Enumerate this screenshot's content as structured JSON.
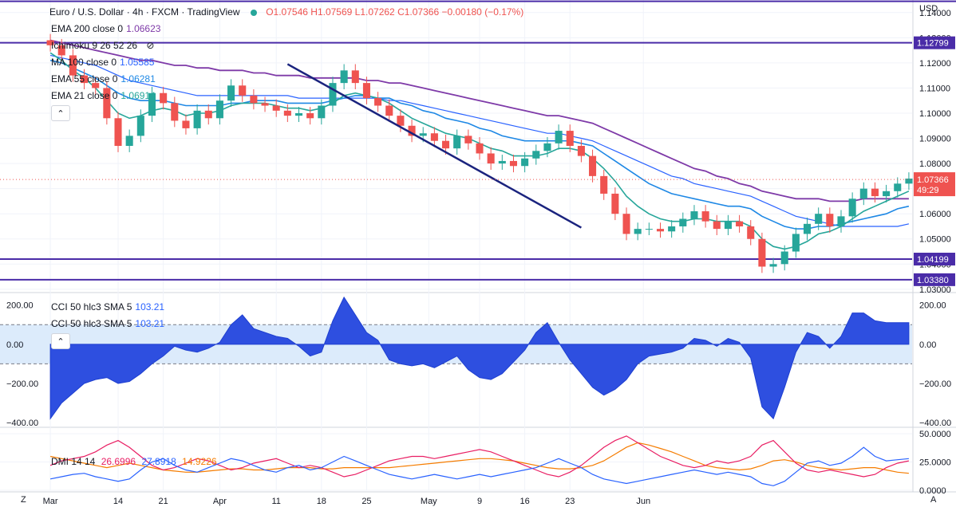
{
  "header": {
    "symbol": "Euro / U.S. Dollar · 4h · FXCM · TradingView",
    "open": "O1.07546",
    "high": "H1.07569",
    "low": "L1.07262",
    "close": "C1.07366",
    "change": "−0.00180 (−0.17%)",
    "currency": "USD"
  },
  "indicators_main": [
    {
      "label": "EMA 200 close 0",
      "value": "1.06623",
      "color": "#7e3aa8"
    },
    {
      "label": "Ichimoku 9 26 52 26",
      "value": "",
      "color": "#131722"
    },
    {
      "label": "MA 100 close 0",
      "value": "1.05585",
      "color": "#2962ff"
    },
    {
      "label": "EMA 55 close 0",
      "value": "1.06281",
      "color": "#1e88e5"
    },
    {
      "label": "EMA 21 close 0",
      "value": "1.06914",
      "color": "#26a69a"
    }
  ],
  "cci_legends": [
    {
      "label": "CCI 50 hlc3 SMA 5",
      "value": "103.21"
    },
    {
      "label": "CCI 50 hlc3 SMA 5",
      "value": "103.21"
    }
  ],
  "dmi_legend": {
    "label": "DMI 14 14",
    "v1": "26.6996",
    "v2": "27.8918",
    "v3": "14.9226",
    "c1": "#e91e63",
    "c2": "#2962ff",
    "c3": "#f57c00"
  },
  "bottom_bar": {
    "left": "Z",
    "right": "A"
  },
  "chart_data": {
    "type": "candlestick",
    "price_axis": {
      "ticks": [
        "1.14000",
        "1.13000",
        "1.12000",
        "1.11000",
        "1.10000",
        "1.09000",
        "1.08000",
        "1.07000",
        "1.06000",
        "1.05000",
        "1.04000",
        "1.03000"
      ],
      "range": [
        1.029,
        1.145
      ]
    },
    "levels": [
      {
        "price": 1.12799,
        "label": "1.12799",
        "color": "#4a2ca8"
      },
      {
        "price": 1.04199,
        "label": "1.04199",
        "color": "#4a2ca8"
      },
      {
        "price": 1.0338,
        "label": "1.03380",
        "color": "#4a2ca8"
      }
    ],
    "top_line_price": 1.1445,
    "last_price": {
      "price": 1.07366,
      "label": "1.07366",
      "countdown": "49:29",
      "color": "#ef5350"
    },
    "x_axis_labels": [
      "Mar",
      "14",
      "21",
      "Apr",
      "11",
      "18",
      "25",
      "May",
      "9",
      "16",
      "23",
      "Jun"
    ],
    "x_axis_positions": [
      0.5,
      6.5,
      10.5,
      15.5,
      20.5,
      24.5,
      28.5,
      34,
      38.5,
      42.5,
      46.5,
      53
    ],
    "trendline": {
      "from": [
        21.5,
        1.1195
      ],
      "to": [
        47.5,
        1.0545
      ],
      "color": "#1a237e"
    },
    "closes": [
      1.127,
      1.123,
      1.115,
      1.112,
      1.11,
      1.098,
      1.087,
      1.091,
      1.099,
      1.108,
      1.104,
      1.097,
      1.094,
      1.101,
      1.098,
      1.105,
      1.111,
      1.107,
      1.104,
      1.103,
      1.101,
      1.099,
      1.1,
      1.098,
      1.103,
      1.112,
      1.117,
      1.112,
      1.106,
      1.103,
      1.099,
      1.095,
      1.091,
      1.092,
      1.089,
      1.086,
      1.091,
      1.088,
      1.084,
      1.08,
      1.081,
      1.079,
      1.082,
      1.085,
      1.088,
      1.093,
      1.087,
      1.083,
      1.075,
      1.068,
      1.06,
      1.052,
      1.054,
      1.054,
      1.053,
      1.055,
      1.058,
      1.061,
      1.057,
      1.054,
      1.057,
      1.055,
      1.05,
      1.039,
      1.04,
      1.045,
      1.052,
      1.056,
      1.06,
      1.055,
      1.059,
      1.066,
      1.07,
      1.067,
      1.069,
      1.072,
      1.074
    ],
    "ema21": [
      1.124,
      1.121,
      1.117,
      1.114,
      1.11,
      1.105,
      1.1,
      1.098,
      1.099,
      1.101,
      1.102,
      1.101,
      1.099,
      1.1,
      1.1,
      1.101,
      1.103,
      1.104,
      1.104,
      1.104,
      1.103,
      1.102,
      1.102,
      1.101,
      1.102,
      1.104,
      1.107,
      1.108,
      1.107,
      1.106,
      1.104,
      1.101,
      1.098,
      1.096,
      1.094,
      1.092,
      1.091,
      1.09,
      1.088,
      1.086,
      1.085,
      1.083,
      1.083,
      1.083,
      1.084,
      1.086,
      1.086,
      1.085,
      1.082,
      1.078,
      1.073,
      1.067,
      1.063,
      1.06,
      1.058,
      1.057,
      1.057,
      1.058,
      1.058,
      1.057,
      1.057,
      1.057,
      1.055,
      1.05,
      1.047,
      1.046,
      1.047,
      1.049,
      1.052,
      1.053,
      1.055,
      1.058,
      1.061,
      1.063,
      1.065,
      1.067,
      1.069
    ],
    "ema55": [
      1.121,
      1.12,
      1.118,
      1.116,
      1.114,
      1.111,
      1.108,
      1.106,
      1.105,
      1.105,
      1.105,
      1.104,
      1.103,
      1.103,
      1.103,
      1.103,
      1.104,
      1.104,
      1.105,
      1.105,
      1.105,
      1.104,
      1.104,
      1.104,
      1.104,
      1.105,
      1.106,
      1.107,
      1.107,
      1.106,
      1.106,
      1.104,
      1.103,
      1.101,
      1.1,
      1.098,
      1.097,
      1.096,
      1.094,
      1.093,
      1.091,
      1.09,
      1.089,
      1.089,
      1.089,
      1.089,
      1.089,
      1.088,
      1.087,
      1.084,
      1.081,
      1.078,
      1.075,
      1.072,
      1.07,
      1.068,
      1.067,
      1.066,
      1.065,
      1.064,
      1.063,
      1.063,
      1.062,
      1.059,
      1.057,
      1.055,
      1.054,
      1.054,
      1.055,
      1.055,
      1.056,
      1.057,
      1.058,
      1.059,
      1.06,
      1.062,
      1.063
    ],
    "ma100": [
      1.123,
      1.122,
      1.121,
      1.12,
      1.119,
      1.117,
      1.115,
      1.113,
      1.112,
      1.111,
      1.11,
      1.109,
      1.108,
      1.107,
      1.107,
      1.107,
      1.107,
      1.107,
      1.107,
      1.107,
      1.107,
      1.107,
      1.106,
      1.106,
      1.106,
      1.106,
      1.106,
      1.106,
      1.106,
      1.106,
      1.105,
      1.105,
      1.104,
      1.103,
      1.102,
      1.101,
      1.1,
      1.099,
      1.098,
      1.097,
      1.096,
      1.095,
      1.094,
      1.093,
      1.092,
      1.092,
      1.091,
      1.09,
      1.089,
      1.087,
      1.085,
      1.083,
      1.081,
      1.079,
      1.077,
      1.075,
      1.074,
      1.072,
      1.071,
      1.07,
      1.069,
      1.068,
      1.067,
      1.065,
      1.063,
      1.061,
      1.059,
      1.058,
      1.057,
      1.056,
      1.055,
      1.055,
      1.055,
      1.055,
      1.055,
      1.055,
      1.056
    ],
    "ema200": [
      1.129,
      1.128,
      1.127,
      1.126,
      1.125,
      1.124,
      1.123,
      1.122,
      1.121,
      1.121,
      1.12,
      1.119,
      1.119,
      1.118,
      1.118,
      1.117,
      1.117,
      1.117,
      1.116,
      1.116,
      1.115,
      1.115,
      1.115,
      1.114,
      1.114,
      1.114,
      1.114,
      1.114,
      1.113,
      1.113,
      1.112,
      1.112,
      1.111,
      1.11,
      1.109,
      1.108,
      1.107,
      1.106,
      1.105,
      1.104,
      1.103,
      1.102,
      1.101,
      1.1,
      1.099,
      1.099,
      1.098,
      1.097,
      1.096,
      1.094,
      1.092,
      1.09,
      1.088,
      1.086,
      1.084,
      1.082,
      1.08,
      1.078,
      1.077,
      1.075,
      1.074,
      1.072,
      1.071,
      1.069,
      1.068,
      1.067,
      1.066,
      1.066,
      1.066,
      1.065,
      1.065,
      1.065,
      1.066,
      1.066,
      1.066,
      1.066,
      1.066
    ],
    "cci": {
      "axis_ticks": [
        "200.00",
        "0.00",
        "−200.00",
        "−400.00"
      ],
      "range": [
        -420,
        260
      ],
      "bands": [
        100,
        -100
      ],
      "values": [
        -380,
        -300,
        -250,
        -200,
        -180,
        -170,
        -200,
        -190,
        -150,
        -100,
        -60,
        -10,
        -30,
        -40,
        -20,
        10,
        100,
        150,
        80,
        60,
        40,
        30,
        -10,
        -60,
        -40,
        120,
        240,
        150,
        60,
        20,
        -80,
        -100,
        -110,
        -100,
        -120,
        -90,
        -60,
        -130,
        -170,
        -180,
        -150,
        -90,
        -30,
        60,
        110,
        10,
        -80,
        -150,
        -220,
        -260,
        -230,
        -180,
        -100,
        -60,
        -50,
        -40,
        -20,
        30,
        20,
        -10,
        30,
        10,
        -70,
        -320,
        -380,
        -220,
        -40,
        60,
        40,
        -20,
        40,
        160,
        160,
        120,
        110,
        110,
        110
      ]
    },
    "dmi": {
      "axis_ticks": [
        "50.0000",
        "25.0000",
        "0.0000"
      ],
      "range": [
        0,
        55
      ],
      "plus_di": [
        10,
        12,
        14,
        15,
        12,
        10,
        8,
        10,
        18,
        25,
        28,
        22,
        18,
        16,
        20,
        24,
        28,
        26,
        22,
        18,
        16,
        20,
        22,
        18,
        20,
        25,
        30,
        26,
        22,
        18,
        14,
        12,
        10,
        12,
        14,
        12,
        10,
        12,
        14,
        12,
        14,
        16,
        18,
        20,
        24,
        28,
        24,
        20,
        14,
        10,
        8,
        6,
        8,
        10,
        12,
        14,
        16,
        18,
        16,
        14,
        16,
        14,
        12,
        6,
        4,
        8,
        16,
        24,
        26,
        22,
        24,
        30,
        38,
        30,
        26,
        27,
        28
      ],
      "minus_di": [
        22,
        26,
        28,
        30,
        34,
        40,
        44,
        38,
        30,
        22,
        18,
        20,
        24,
        28,
        26,
        22,
        18,
        20,
        24,
        26,
        28,
        24,
        20,
        22,
        20,
        16,
        12,
        14,
        18,
        22,
        26,
        28,
        30,
        30,
        28,
        30,
        32,
        34,
        36,
        34,
        30,
        26,
        22,
        18,
        14,
        12,
        16,
        22,
        30,
        38,
        44,
        48,
        42,
        36,
        30,
        26,
        22,
        20,
        22,
        26,
        24,
        26,
        30,
        40,
        44,
        34,
        24,
        18,
        16,
        18,
        16,
        14,
        12,
        14,
        20,
        24,
        26
      ],
      "adx": [
        30,
        28,
        26,
        24,
        22,
        20,
        22,
        24,
        22,
        20,
        18,
        17,
        16,
        16,
        17,
        18,
        19,
        19,
        18,
        18,
        19,
        20,
        20,
        20,
        19,
        19,
        20,
        20,
        20,
        20,
        20,
        21,
        22,
        23,
        24,
        25,
        26,
        27,
        28,
        28,
        27,
        26,
        24,
        22,
        20,
        19,
        19,
        20,
        22,
        26,
        32,
        38,
        42,
        40,
        37,
        34,
        30,
        26,
        22,
        20,
        19,
        18,
        19,
        22,
        26,
        27,
        25,
        22,
        20,
        19,
        18,
        19,
        20,
        20,
        18,
        16,
        15
      ]
    }
  }
}
